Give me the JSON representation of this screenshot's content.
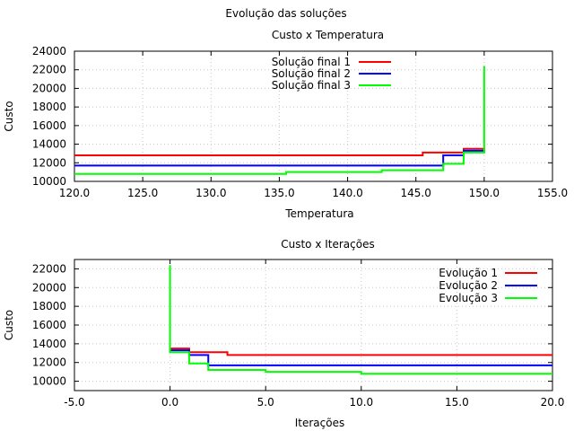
{
  "figure_title": "Evolução das soluções",
  "colors": {
    "series1": "#ff0000",
    "series2": "#0000ff",
    "series3": "#00ff00",
    "grid": "#c8c8c8"
  },
  "chart_data": [
    {
      "type": "line",
      "title": "Custo x Temperatura",
      "xlabel": "Temperatura",
      "ylabel": "Custo",
      "xlim": [
        120,
        155
      ],
      "ylim": [
        10000,
        24000
      ],
      "xticks": [
        120,
        125,
        130,
        135,
        140,
        145,
        150,
        155
      ],
      "xtick_labels": [
        "120.0",
        "125.0",
        "130.0",
        "135.0",
        "140.0",
        "145.0",
        "150.0",
        "155.0"
      ],
      "yticks": [
        10000,
        12000,
        14000,
        16000,
        18000,
        20000,
        22000,
        24000
      ],
      "ytick_labels": [
        "10000",
        "12000",
        "14000",
        "16000",
        "18000",
        "20000",
        "22000",
        "24000"
      ],
      "grid": true,
      "legend_position": "top-center",
      "series": [
        {
          "name": "Solução final 1",
          "color": "#ff0000",
          "x": [
            120,
            145.5,
            145.5,
            148.5,
            148.5,
            150,
            150
          ],
          "y": [
            12800,
            12800,
            13100,
            13100,
            13500,
            13500,
            13300
          ]
        },
        {
          "name": "Solução final 2",
          "color": "#0000ff",
          "x": [
            120,
            147,
            147,
            148.5,
            148.5,
            150,
            150
          ],
          "y": [
            11700,
            11700,
            12800,
            12800,
            13300,
            13300,
            13100
          ]
        },
        {
          "name": "Solução final 3",
          "color": "#00ff00",
          "x": [
            120,
            135.5,
            135.5,
            142.5,
            142.5,
            147,
            147,
            148.5,
            148.5,
            150,
            150
          ],
          "y": [
            10800,
            10800,
            11000,
            11000,
            11200,
            11200,
            11900,
            11900,
            13100,
            13100,
            22400
          ]
        }
      ]
    },
    {
      "type": "line",
      "title": "Custo x Iterações",
      "xlabel": "Iterações",
      "ylabel": "Custo",
      "xlim": [
        -5,
        20
      ],
      "ylim": [
        9000,
        23000
      ],
      "xticks": [
        -5,
        0,
        5,
        10,
        15,
        20
      ],
      "xtick_labels": [
        "-5.0",
        "0.0",
        "5.0",
        "10.0",
        "15.0",
        "20.0"
      ],
      "yticks": [
        10000,
        12000,
        14000,
        16000,
        18000,
        20000,
        22000
      ],
      "ytick_labels": [
        "10000",
        "12000",
        "14000",
        "16000",
        "18000",
        "20000",
        "22000"
      ],
      "grid": true,
      "legend_position": "top-right",
      "series": [
        {
          "name": "Evolução 1",
          "color": "#ff0000",
          "x": [
            0,
            0,
            1,
            1,
            3,
            3,
            20
          ],
          "y": [
            13300,
            13500,
            13500,
            13100,
            13100,
            12800,
            12800
          ]
        },
        {
          "name": "Evolução 2",
          "color": "#0000ff",
          "x": [
            0,
            0,
            1,
            1,
            2,
            2,
            20
          ],
          "y": [
            13100,
            13300,
            13300,
            12800,
            12800,
            11700,
            11700
          ]
        },
        {
          "name": "Evolução 3",
          "color": "#00ff00",
          "x": [
            0,
            0,
            1,
            1,
            2,
            2,
            5,
            5,
            10,
            10,
            20
          ],
          "y": [
            22400,
            13100,
            13100,
            11900,
            11900,
            11200,
            11200,
            11000,
            11000,
            10800,
            10800
          ]
        }
      ]
    }
  ]
}
